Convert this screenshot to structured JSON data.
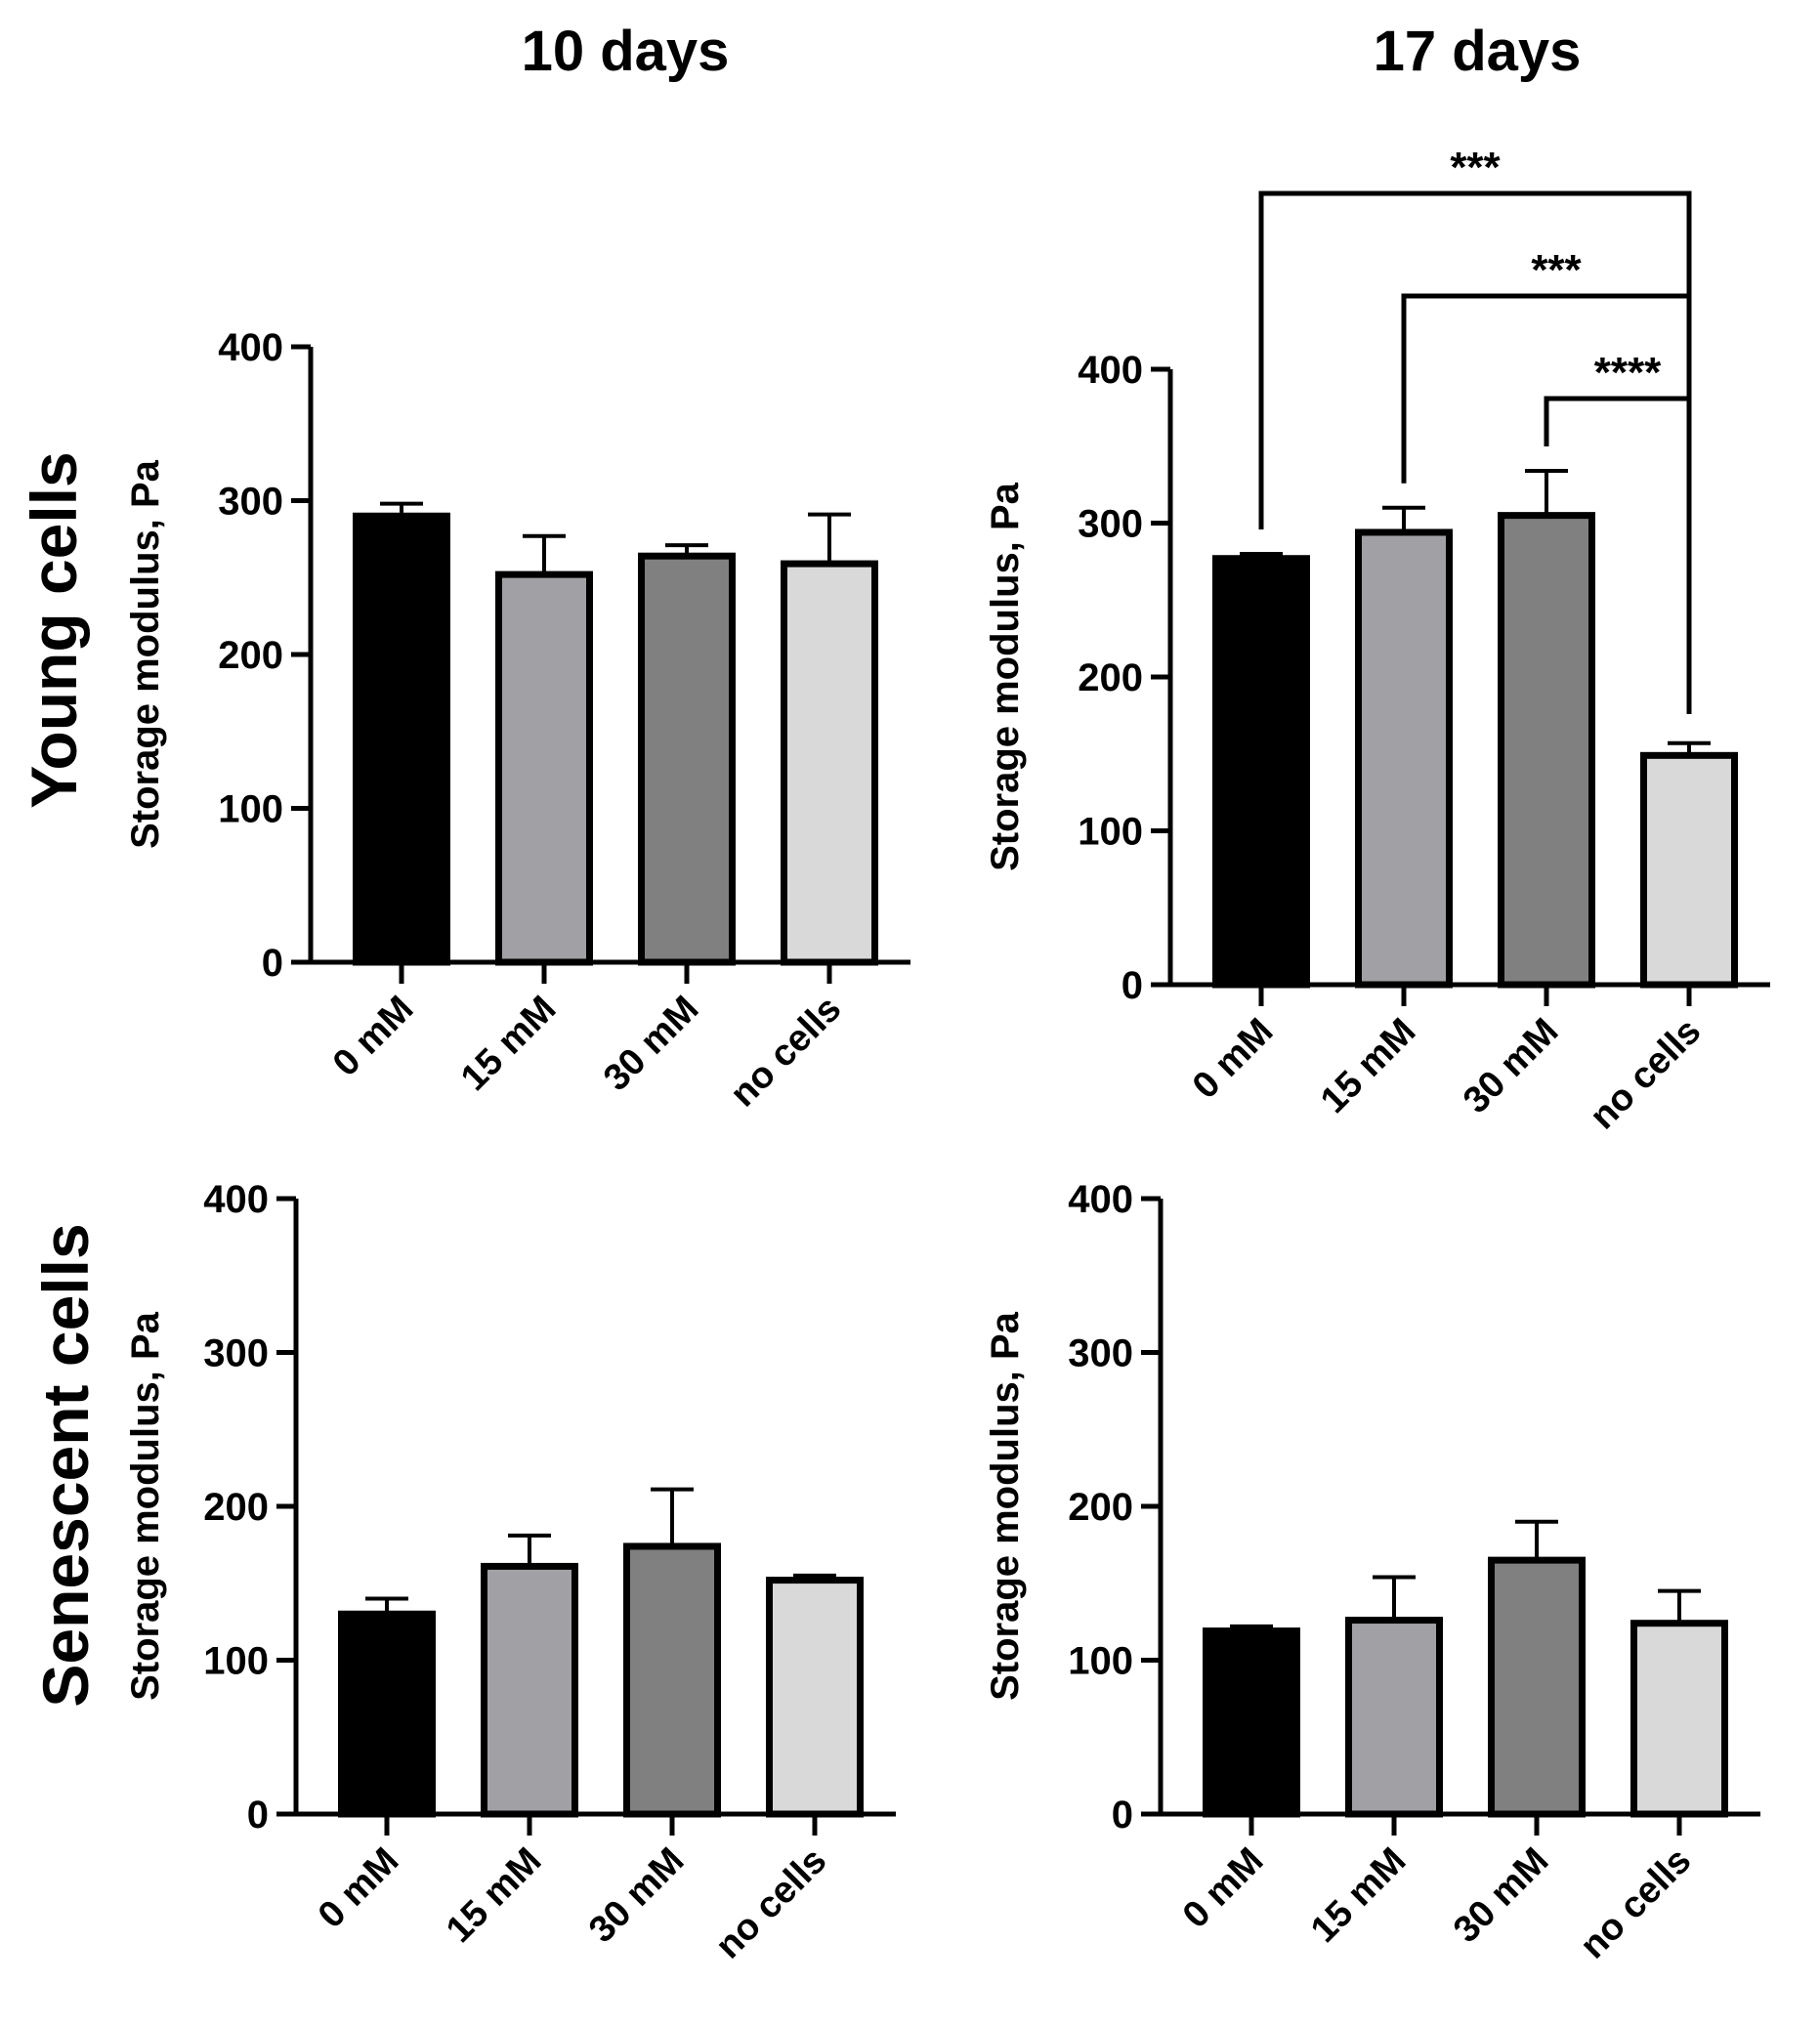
{
  "figure": {
    "column_titles": [
      "10 days",
      "17 days"
    ],
    "row_titles": [
      "Young cells",
      "Senescent cells"
    ]
  },
  "colors": {
    "0 mM": "#000000",
    "15 mM": "#a1a1a5",
    "30 mM": "#808080",
    "no cells": "#d9d9d9",
    "outline": "#000000"
  },
  "chart_data": [
    {
      "id": "young-10d",
      "type": "bar",
      "row": "Young cells",
      "column": "10 days",
      "categories": [
        "0 mM",
        "15 mM",
        "30 mM",
        "no cells"
      ],
      "values": [
        290,
        252,
        264,
        259
      ],
      "errors": [
        8,
        25,
        7,
        32
      ],
      "ylabel": "Storage modulus, Pa",
      "ylim": [
        0,
        400
      ],
      "yticks": [
        0,
        100,
        200,
        300,
        400
      ],
      "significance": []
    },
    {
      "id": "young-17d",
      "type": "bar",
      "row": "Young cells",
      "column": "17 days",
      "categories": [
        "0 mM",
        "15 mM",
        "30 mM",
        "no cells"
      ],
      "values": [
        277,
        294,
        305,
        149
      ],
      "errors": [
        3,
        16,
        29,
        8
      ],
      "ylabel": "Storage modulus, Pa",
      "ylim": [
        0,
        400
      ],
      "yticks": [
        0,
        100,
        200,
        300,
        400
      ],
      "significance": [
        {
          "from": "0 mM",
          "to": "no cells",
          "label": "***"
        },
        {
          "from": "15 mM",
          "to": "no cells",
          "label": "***"
        },
        {
          "from": "30 mM",
          "to": "no cells",
          "label": "****"
        }
      ]
    },
    {
      "id": "senescent-10d",
      "type": "bar",
      "row": "Senescent cells",
      "column": "10 days",
      "categories": [
        "0 mM",
        "15 mM",
        "30 mM",
        "no cells"
      ],
      "values": [
        130,
        161,
        174,
        152
      ],
      "errors": [
        10,
        20,
        37,
        3
      ],
      "ylabel": "Storage modulus, Pa",
      "ylim": [
        0,
        400
      ],
      "yticks": [
        0,
        100,
        200,
        300,
        400
      ],
      "significance": []
    },
    {
      "id": "senescent-17d",
      "type": "bar",
      "row": "Senescent cells",
      "column": "17 days",
      "categories": [
        "0 mM",
        "15 mM",
        "30 mM",
        "no cells"
      ],
      "values": [
        119,
        126,
        165,
        124
      ],
      "errors": [
        3,
        28,
        25,
        21
      ],
      "ylabel": "Storage modulus, Pa",
      "ylim": [
        0,
        400
      ],
      "yticks": [
        0,
        100,
        200,
        300,
        400
      ],
      "significance": []
    }
  ]
}
